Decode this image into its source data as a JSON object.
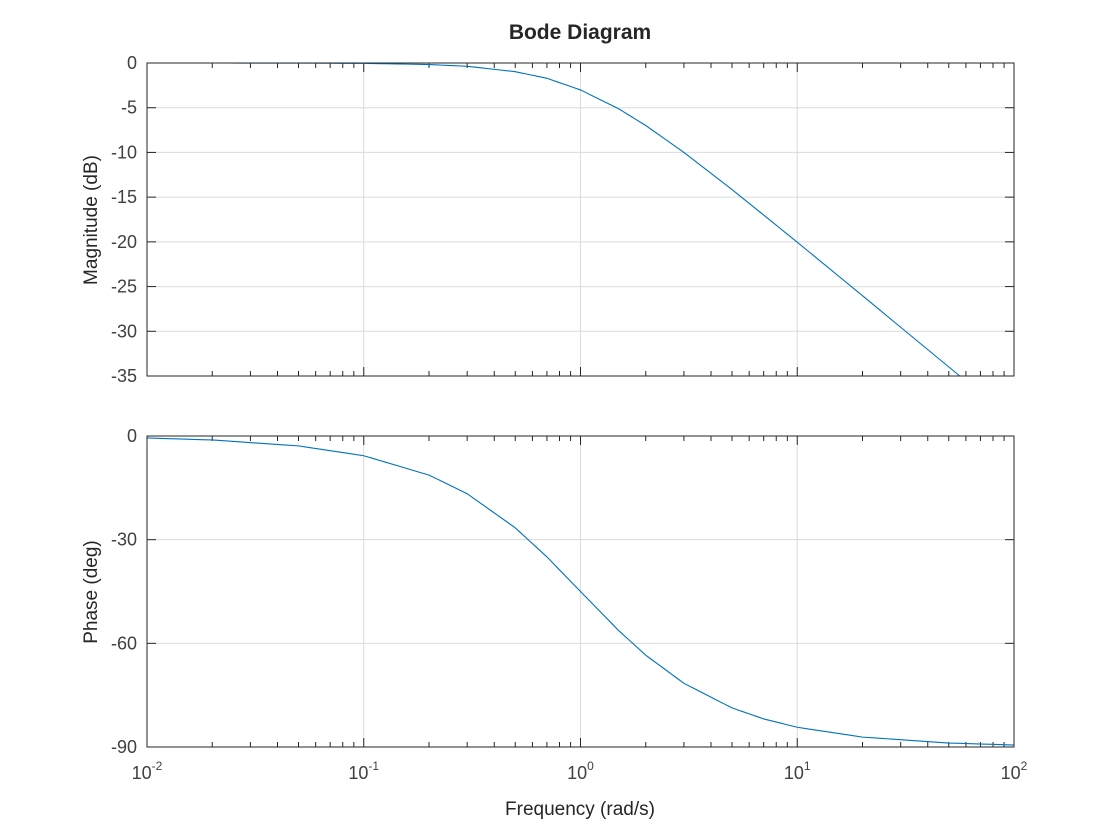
{
  "figure": {
    "title": "Bode Diagram",
    "xlabel": "Frequency (rad/s)",
    "x_tick_labels": [
      {
        "base": "10",
        "exp": "-2"
      },
      {
        "base": "10",
        "exp": "-1"
      },
      {
        "base": "10",
        "exp": "0"
      },
      {
        "base": "10",
        "exp": "1"
      },
      {
        "base": "10",
        "exp": "2"
      }
    ]
  },
  "chart_data": [
    {
      "type": "line",
      "name": "magnitude",
      "ylabel": "Magnitude (dB)",
      "x_scale": "log",
      "xlim": [
        0.01,
        100
      ],
      "ylim": [
        -35,
        0
      ],
      "yticks": [
        0,
        -5,
        -10,
        -15,
        -20,
        -25,
        -30,
        -35
      ],
      "grid": true,
      "line_color": "#0072bd",
      "x": [
        0.01,
        0.02,
        0.05,
        0.1,
        0.2,
        0.3,
        0.5,
        0.7,
        1,
        1.5,
        2,
        3,
        5,
        7,
        10,
        20,
        30,
        56.2
      ],
      "y": [
        0,
        0,
        -0.01,
        -0.04,
        -0.17,
        -0.37,
        -0.97,
        -1.71,
        -3.01,
        -5.12,
        -6.99,
        -10.0,
        -14.15,
        -17.0,
        -20.04,
        -26.02,
        -29.55,
        -35.0
      ]
    },
    {
      "type": "line",
      "name": "phase",
      "ylabel": "Phase (deg)",
      "x_scale": "log",
      "xlim": [
        0.01,
        100
      ],
      "ylim": [
        -90,
        0
      ],
      "yticks": [
        0,
        -30,
        -60,
        -90
      ],
      "grid": true,
      "line_color": "#0072bd",
      "x": [
        0.01,
        0.02,
        0.05,
        0.1,
        0.2,
        0.3,
        0.5,
        0.7,
        1,
        1.5,
        2,
        3,
        5,
        7,
        10,
        20,
        50,
        100
      ],
      "y": [
        -0.57,
        -1.15,
        -2.86,
        -5.71,
        -11.31,
        -16.7,
        -26.57,
        -34.99,
        -45.0,
        -56.31,
        -63.43,
        -71.57,
        -78.69,
        -81.87,
        -84.29,
        -87.14,
        -88.85,
        -89.43
      ]
    }
  ]
}
